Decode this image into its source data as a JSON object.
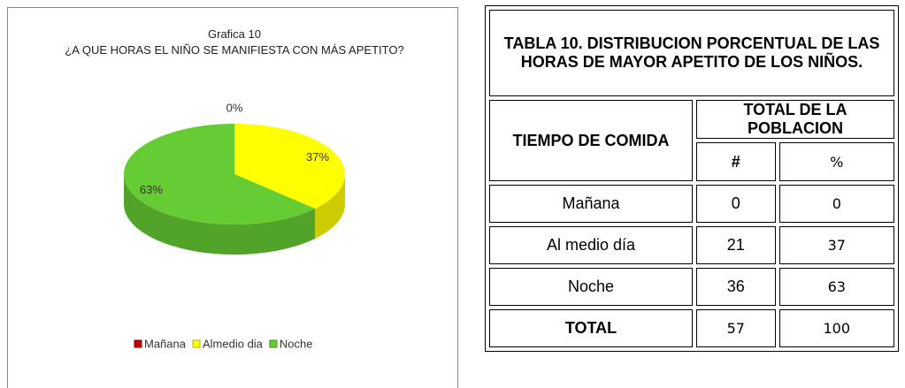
{
  "chart_data": {
    "type": "pie",
    "title": "Grafica 10",
    "subtitle": "¿A QUE HORAS EL NIÑO SE MANIFIESTA CON MÁS APETITO?",
    "categories": [
      "Mañana",
      "Almedio dia",
      "Noche"
    ],
    "values": [
      0,
      37,
      63
    ],
    "value_labels": [
      "0%",
      "37%",
      "63%"
    ],
    "colors": [
      "#c00000",
      "#ffff00",
      "#66cc33"
    ],
    "legend": "bottom"
  },
  "table": {
    "title": "TABLA 10. DISTRIBUCION PORCENTUAL DE LAS HORAS DE MAYOR APETITO DE LOS NIÑOS.",
    "header": [
      "TIEMPO DE COMIDA",
      "TOTAL DE LA POBLACION",
      "#",
      "%"
    ],
    "rows": [
      [
        "Mañana",
        0,
        0
      ],
      [
        "Al medio día",
        21,
        37
      ],
      [
        "Noche",
        36,
        63
      ],
      [
        "TOTAL",
        57,
        100
      ]
    ]
  }
}
